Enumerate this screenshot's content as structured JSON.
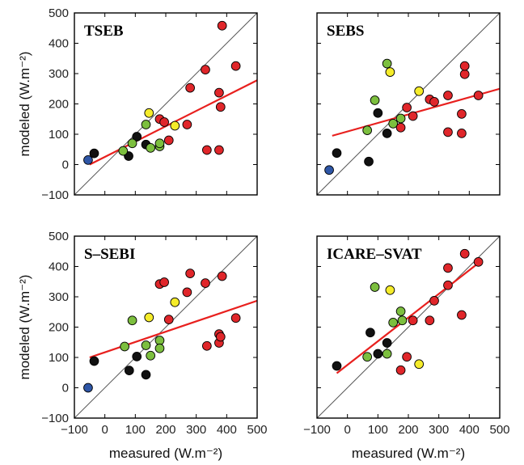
{
  "chart_data": {
    "type": "scatter",
    "xlabel": "measured (W.m⁻²)",
    "ylabel": "modeled (W.m⁻²)",
    "xlim": [
      -100,
      500
    ],
    "ylim": [
      -100,
      500
    ],
    "xticks": [
      "−100",
      "0",
      "100",
      "200",
      "300",
      "400",
      "500"
    ],
    "yticks": [
      "−100",
      "0",
      "100",
      "200",
      "300",
      "400",
      "500"
    ],
    "one_to_one_line": true,
    "colors": {
      "red": "#e0262a",
      "green": "#7cbf3e",
      "yellow": "#f5ec2a",
      "black": "#111111",
      "blue": "#2e56a6",
      "fit": "#e8201e",
      "diag": "#555555"
    },
    "panels": [
      {
        "title": "TSEB",
        "fit": [
          [
            -50,
            0
          ],
          [
            500,
            278
          ]
        ],
        "points": [
          {
            "x": -55,
            "y": 15,
            "c": "blue"
          },
          {
            "x": -35,
            "y": 37,
            "c": "black"
          },
          {
            "x": 78,
            "y": 28,
            "c": "black"
          },
          {
            "x": 105,
            "y": 92,
            "c": "black"
          },
          {
            "x": 135,
            "y": 66,
            "c": "black"
          },
          {
            "x": 60,
            "y": 45,
            "c": "green"
          },
          {
            "x": 90,
            "y": 70,
            "c": "green"
          },
          {
            "x": 135,
            "y": 132,
            "c": "green"
          },
          {
            "x": 150,
            "y": 55,
            "c": "green"
          },
          {
            "x": 180,
            "y": 60,
            "c": "green"
          },
          {
            "x": 180,
            "y": 70,
            "c": "green"
          },
          {
            "x": 145,
            "y": 170,
            "c": "yellow"
          },
          {
            "x": 230,
            "y": 128,
            "c": "yellow"
          },
          {
            "x": 180,
            "y": 150,
            "c": "red"
          },
          {
            "x": 195,
            "y": 140,
            "c": "red"
          },
          {
            "x": 210,
            "y": 80,
            "c": "red"
          },
          {
            "x": 270,
            "y": 132,
            "c": "red"
          },
          {
            "x": 280,
            "y": 253,
            "c": "red"
          },
          {
            "x": 330,
            "y": 313,
            "c": "red"
          },
          {
            "x": 335,
            "y": 48,
            "c": "red"
          },
          {
            "x": 375,
            "y": 48,
            "c": "red"
          },
          {
            "x": 375,
            "y": 237,
            "c": "red"
          },
          {
            "x": 380,
            "y": 190,
            "c": "red"
          },
          {
            "x": 385,
            "y": 458,
            "c": "red"
          },
          {
            "x": 430,
            "y": 325,
            "c": "red"
          }
        ]
      },
      {
        "title": "SEBS",
        "fit": [
          [
            -50,
            95
          ],
          [
            500,
            250
          ]
        ],
        "points": [
          {
            "x": -60,
            "y": -18,
            "c": "blue"
          },
          {
            "x": -35,
            "y": 38,
            "c": "black"
          },
          {
            "x": 70,
            "y": 10,
            "c": "black"
          },
          {
            "x": 100,
            "y": 170,
            "c": "black"
          },
          {
            "x": 130,
            "y": 103,
            "c": "black"
          },
          {
            "x": 65,
            "y": 113,
            "c": "green"
          },
          {
            "x": 90,
            "y": 212,
            "c": "green"
          },
          {
            "x": 130,
            "y": 333,
            "c": "green"
          },
          {
            "x": 150,
            "y": 135,
            "c": "green"
          },
          {
            "x": 175,
            "y": 152,
            "c": "green"
          },
          {
            "x": 140,
            "y": 305,
            "c": "yellow"
          },
          {
            "x": 235,
            "y": 242,
            "c": "yellow"
          },
          {
            "x": 175,
            "y": 122,
            "c": "red"
          },
          {
            "x": 195,
            "y": 188,
            "c": "red"
          },
          {
            "x": 215,
            "y": 160,
            "c": "red"
          },
          {
            "x": 270,
            "y": 215,
            "c": "red"
          },
          {
            "x": 285,
            "y": 207,
            "c": "red"
          },
          {
            "x": 330,
            "y": 228,
            "c": "red"
          },
          {
            "x": 330,
            "y": 107,
            "c": "red"
          },
          {
            "x": 375,
            "y": 103,
            "c": "red"
          },
          {
            "x": 375,
            "y": 167,
            "c": "red"
          },
          {
            "x": 385,
            "y": 298,
            "c": "red"
          },
          {
            "x": 385,
            "y": 325,
            "c": "red"
          },
          {
            "x": 430,
            "y": 228,
            "c": "red"
          }
        ]
      },
      {
        "title": "S–SEBI",
        "fit": [
          [
            -50,
            100
          ],
          [
            500,
            287
          ]
        ],
        "points": [
          {
            "x": -55,
            "y": 0,
            "c": "blue"
          },
          {
            "x": -35,
            "y": 88,
            "c": "black"
          },
          {
            "x": 80,
            "y": 57,
            "c": "black"
          },
          {
            "x": 105,
            "y": 103,
            "c": "black"
          },
          {
            "x": 135,
            "y": 43,
            "c": "black"
          },
          {
            "x": 65,
            "y": 136,
            "c": "green"
          },
          {
            "x": 90,
            "y": 222,
            "c": "green"
          },
          {
            "x": 135,
            "y": 140,
            "c": "green"
          },
          {
            "x": 150,
            "y": 106,
            "c": "green"
          },
          {
            "x": 180,
            "y": 156,
            "c": "green"
          },
          {
            "x": 180,
            "y": 130,
            "c": "green"
          },
          {
            "x": 145,
            "y": 232,
            "c": "yellow"
          },
          {
            "x": 230,
            "y": 282,
            "c": "yellow"
          },
          {
            "x": 180,
            "y": 342,
            "c": "red"
          },
          {
            "x": 195,
            "y": 348,
            "c": "red"
          },
          {
            "x": 210,
            "y": 225,
            "c": "red"
          },
          {
            "x": 270,
            "y": 315,
            "c": "red"
          },
          {
            "x": 280,
            "y": 377,
            "c": "red"
          },
          {
            "x": 330,
            "y": 345,
            "c": "red"
          },
          {
            "x": 335,
            "y": 138,
            "c": "red"
          },
          {
            "x": 375,
            "y": 148,
            "c": "red"
          },
          {
            "x": 375,
            "y": 177,
            "c": "red"
          },
          {
            "x": 380,
            "y": 168,
            "c": "red"
          },
          {
            "x": 385,
            "y": 368,
            "c": "red"
          },
          {
            "x": 430,
            "y": 230,
            "c": "red"
          }
        ]
      },
      {
        "title": "ICARE–SVAT",
        "fit": [
          [
            -35,
            48
          ],
          [
            435,
            415
          ]
        ],
        "points": [
          {
            "x": -35,
            "y": 72,
            "c": "black"
          },
          {
            "x": 75,
            "y": 182,
            "c": "black"
          },
          {
            "x": 100,
            "y": 112,
            "c": "black"
          },
          {
            "x": 130,
            "y": 148,
            "c": "black"
          },
          {
            "x": 65,
            "y": 102,
            "c": "green"
          },
          {
            "x": 90,
            "y": 332,
            "c": "green"
          },
          {
            "x": 130,
            "y": 112,
            "c": "green"
          },
          {
            "x": 150,
            "y": 215,
            "c": "green"
          },
          {
            "x": 175,
            "y": 252,
            "c": "green"
          },
          {
            "x": 180,
            "y": 222,
            "c": "green"
          },
          {
            "x": 140,
            "y": 322,
            "c": "yellow"
          },
          {
            "x": 235,
            "y": 78,
            "c": "yellow"
          },
          {
            "x": 175,
            "y": 58,
            "c": "red"
          },
          {
            "x": 195,
            "y": 102,
            "c": "red"
          },
          {
            "x": 215,
            "y": 222,
            "c": "red"
          },
          {
            "x": 270,
            "y": 222,
            "c": "red"
          },
          {
            "x": 285,
            "y": 287,
            "c": "red"
          },
          {
            "x": 330,
            "y": 395,
            "c": "red"
          },
          {
            "x": 330,
            "y": 338,
            "c": "red"
          },
          {
            "x": 375,
            "y": 240,
            "c": "red"
          },
          {
            "x": 385,
            "y": 442,
            "c": "red"
          },
          {
            "x": 430,
            "y": 415,
            "c": "red"
          }
        ]
      }
    ]
  }
}
